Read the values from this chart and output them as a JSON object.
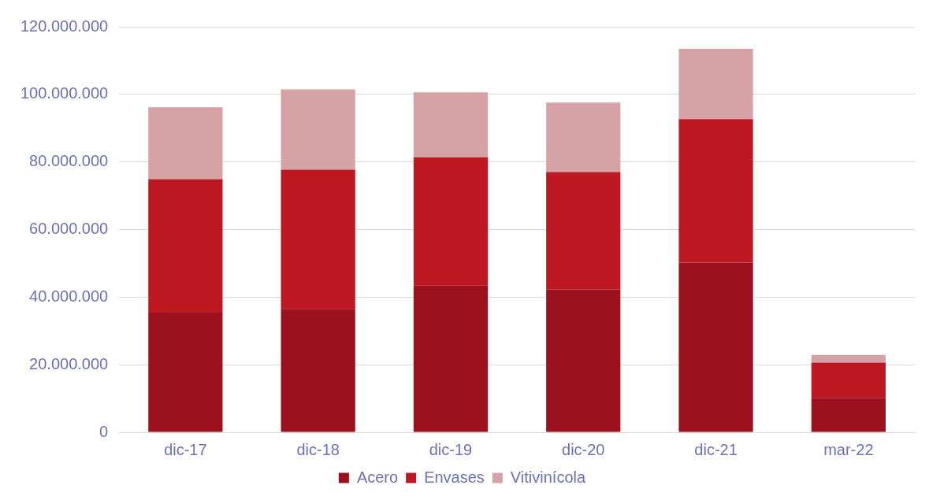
{
  "chart_data": {
    "type": "bar",
    "stacked": true,
    "categories": [
      "dic-17",
      "dic-18",
      "dic-19",
      "dic-20",
      "dic-21",
      "mar-22"
    ],
    "series": [
      {
        "name": "Acero",
        "color": "#9b111e",
        "values": [
          35400000,
          36500000,
          43500000,
          42300000,
          50200000,
          10200000
        ]
      },
      {
        "name": "Envases",
        "color": "#be1823",
        "values": [
          39500000,
          41200000,
          37900000,
          34700000,
          42500000,
          10400000
        ]
      },
      {
        "name": "Vitivinícola",
        "color": "#d5a3a5",
        "values": [
          21300000,
          23800000,
          19200000,
          20600000,
          20800000,
          2300000
        ]
      }
    ],
    "ylim": [
      0,
      120000000
    ],
    "yticks": [
      {
        "value": 0,
        "label": "0"
      },
      {
        "value": 20000000,
        "label": "20.000.000"
      },
      {
        "value": 40000000,
        "label": "40.000.000"
      },
      {
        "value": 60000000,
        "label": "60.000.000"
      },
      {
        "value": 80000000,
        "label": "80.000.000"
      },
      {
        "value": 100000000,
        "label": "100.000.000"
      },
      {
        "value": 120000000,
        "label": "120.000.000"
      }
    ],
    "grid": "y",
    "legend": "bottom"
  }
}
